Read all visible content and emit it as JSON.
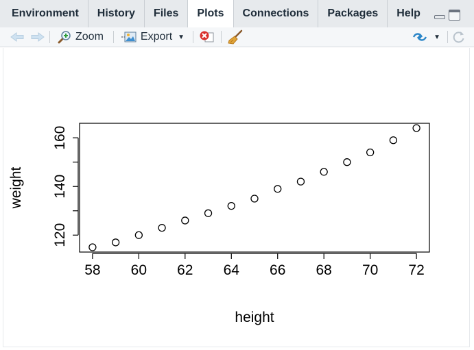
{
  "tabs": [
    {
      "label": "Environment",
      "active": false
    },
    {
      "label": "History",
      "active": false
    },
    {
      "label": "Files",
      "active": false
    },
    {
      "label": "Plots",
      "active": true
    },
    {
      "label": "Connections",
      "active": false
    },
    {
      "label": "Packages",
      "active": false
    },
    {
      "label": "Help",
      "active": false
    }
  ],
  "toolbar": {
    "zoom_label": "Zoom",
    "export_label": "Export"
  },
  "icons": {
    "back": "arrow-left-icon",
    "forward": "arrow-right-icon",
    "zoom": "magnifier-plus-icon",
    "export": "export-image-icon",
    "remove": "remove-plot-icon",
    "clear": "broom-icon",
    "publish": "publish-icon",
    "refresh": "refresh-icon"
  },
  "colors": {
    "accent": "#2b86c8",
    "remove_red": "#d9302c",
    "tabbar_bg": "#e7eaed"
  },
  "chart_data": {
    "type": "scatter",
    "title": "",
    "xlabel": "height",
    "ylabel": "weight",
    "x": [
      58,
      59,
      60,
      61,
      62,
      63,
      64,
      65,
      66,
      67,
      68,
      69,
      70,
      71,
      72
    ],
    "y": [
      115,
      117,
      120,
      123,
      126,
      129,
      132,
      135,
      139,
      142,
      146,
      150,
      154,
      159,
      164
    ],
    "xlim": [
      57.44,
      72.56
    ],
    "ylim": [
      113.04,
      165.96
    ],
    "xticks": [
      58,
      60,
      62,
      64,
      66,
      68,
      70,
      72
    ],
    "yticks": [
      120,
      140,
      160
    ],
    "marker": "open-circle",
    "grid": false
  }
}
